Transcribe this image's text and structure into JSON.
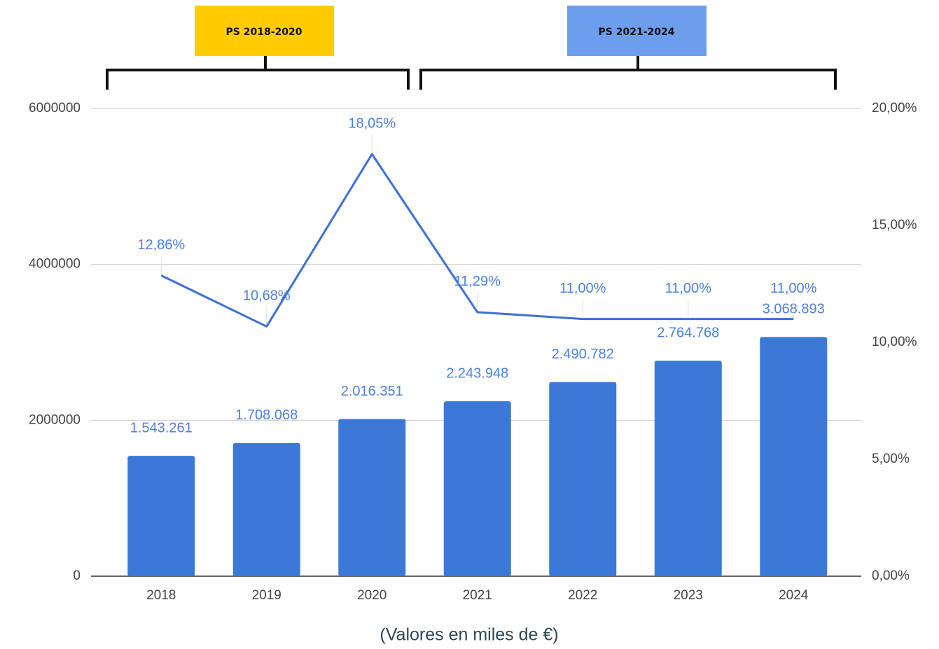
{
  "chart_data": {
    "type": "bar_line",
    "categories": [
      "2018",
      "2019",
      "2020",
      "2021",
      "2022",
      "2023",
      "2024"
    ],
    "series": [
      {
        "type": "bar",
        "color": "#3c78d8",
        "values": [
          1543261,
          1708068,
          2016351,
          2243948,
          2490782,
          2764768,
          3068893
        ],
        "value_labels": [
          "1.543.261",
          "1.708.068",
          "2.016.351",
          "2.243.948",
          "2.490.782",
          "2.764.768",
          "3.068.893"
        ]
      },
      {
        "type": "line",
        "axis": "y2",
        "color": "#3c6fd8",
        "values": [
          12.86,
          10.68,
          18.05,
          11.29,
          11.0,
          11.0,
          11.0
        ],
        "value_labels": [
          "12,86%",
          "10,68%",
          "18,05%",
          "11,29%",
          "11,00%",
          "11,00%",
          "11,00%"
        ]
      }
    ],
    "ylim": [
      0,
      6000000
    ],
    "yticks": [
      0,
      2000000,
      4000000,
      6000000
    ],
    "y2lim": [
      0,
      20
    ],
    "y2ticks": [
      {
        "value": 0,
        "label": "0,00%"
      },
      {
        "value": 5,
        "label": "5,00%"
      },
      {
        "value": 10,
        "label": "10,00%"
      },
      {
        "value": 15,
        "label": "15,00%"
      },
      {
        "value": 20,
        "label": "20,00%"
      }
    ],
    "grid": true,
    "annotations": [
      {
        "text": "PS 2018-2020",
        "color": "#ffcc00"
      },
      {
        "text": "PS 2021-2024",
        "color": "#6d9eeb"
      }
    ],
    "caption": "(Valores en miles de €)"
  }
}
